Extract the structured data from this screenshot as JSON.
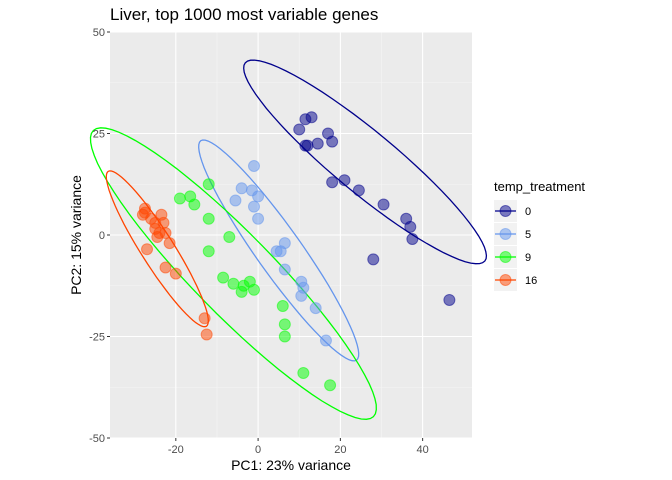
{
  "chart_data": {
    "type": "scatter",
    "title": "Liver, top 1000 most variable genes",
    "xlabel": "PC1: 23% variance",
    "ylabel": "PC2: 15% variance",
    "xlim": [
      -36,
      52
    ],
    "ylim": [
      -50,
      50
    ],
    "xticks": [
      -20,
      0,
      20,
      40
    ],
    "yticks": [
      -50,
      -25,
      0,
      25,
      50
    ],
    "tick_labels_x": [
      "-20",
      "0",
      "20",
      "40"
    ],
    "tick_labels_y": [
      "-50",
      "-25",
      "0",
      "25",
      "50"
    ],
    "grid": true,
    "legend": {
      "title": "temp_treatment",
      "position": "right"
    },
    "series": [
      {
        "name": "0",
        "color": "#00008B",
        "points": [
          [
            11.5,
            28.5
          ],
          [
            13,
            29
          ],
          [
            10,
            26
          ],
          [
            17,
            25
          ],
          [
            11.5,
            22
          ],
          [
            12,
            22
          ],
          [
            14.5,
            22.5
          ],
          [
            18,
            23
          ],
          [
            18,
            13
          ],
          [
            21,
            13.5
          ],
          [
            24.5,
            11
          ],
          [
            30.5,
            7.5
          ],
          [
            36,
            4
          ],
          [
            37,
            2
          ],
          [
            37.5,
            -1
          ],
          [
            28,
            -6
          ],
          [
            46.5,
            -16
          ]
        ]
      },
      {
        "name": "5",
        "color": "#6495ED",
        "points": [
          [
            -1,
            17
          ],
          [
            -4,
            11.5
          ],
          [
            -1.5,
            11
          ],
          [
            0,
            9.5
          ],
          [
            -5.5,
            8.5
          ],
          [
            -1,
            7
          ],
          [
            0,
            4
          ],
          [
            4.5,
            -4
          ],
          [
            5.5,
            -4
          ],
          [
            6.5,
            -2
          ],
          [
            6.5,
            -8.5
          ],
          [
            10.5,
            -11.5
          ],
          [
            11,
            -13
          ],
          [
            10.5,
            -15
          ],
          [
            14,
            -18
          ],
          [
            16.5,
            -26
          ]
        ]
      },
      {
        "name": "9",
        "color": "#00FF00",
        "points": [
          [
            -19,
            9
          ],
          [
            -16.5,
            9.5
          ],
          [
            -15.5,
            7.5
          ],
          [
            -12,
            12.5
          ],
          [
            -12,
            4
          ],
          [
            -7,
            -0.5
          ],
          [
            -12,
            -4
          ],
          [
            -8.5,
            -10.5
          ],
          [
            -6,
            -12
          ],
          [
            -3.5,
            -12.5
          ],
          [
            -2,
            -11.5
          ],
          [
            -1,
            -13.5
          ],
          [
            -4,
            -14
          ],
          [
            6,
            -17.5
          ],
          [
            6.5,
            -22
          ],
          [
            6.5,
            -25
          ],
          [
            11,
            -34
          ],
          [
            17.5,
            -37
          ]
        ]
      },
      {
        "name": "16",
        "color": "#FF4500",
        "points": [
          [
            -27.5,
            6.5
          ],
          [
            -27.5,
            5.5
          ],
          [
            -28,
            5
          ],
          [
            -26,
            4
          ],
          [
            -23.5,
            5
          ],
          [
            -25,
            3
          ],
          [
            -23,
            3
          ],
          [
            -25,
            1.5
          ],
          [
            -24,
            0.5
          ],
          [
            -22.5,
            0.5
          ],
          [
            -24.5,
            -0.5
          ],
          [
            -21.5,
            -2
          ],
          [
            -27,
            -3.5
          ],
          [
            -22.5,
            -8
          ],
          [
            -20,
            -9.5
          ],
          [
            -13,
            -20.5
          ],
          [
            -12.5,
            -24.5
          ]
        ]
      }
    ],
    "ellipses": [
      {
        "series": "0",
        "center": [
          26,
          18
        ],
        "radii": [
          38,
          7.5
        ],
        "angle_deg": -40
      },
      {
        "series": "5",
        "center": [
          5,
          -3.8
        ],
        "radii": [
          33,
          5.5
        ],
        "angle_deg": -55
      },
      {
        "series": "9",
        "center": [
          -6,
          -9.5
        ],
        "radii": [
          49,
          9.8
        ],
        "angle_deg": -46
      },
      {
        "series": "16",
        "center": [
          -24.5,
          -3.4
        ],
        "radii": [
          22.5,
          4
        ],
        "angle_deg": -58
      }
    ]
  }
}
